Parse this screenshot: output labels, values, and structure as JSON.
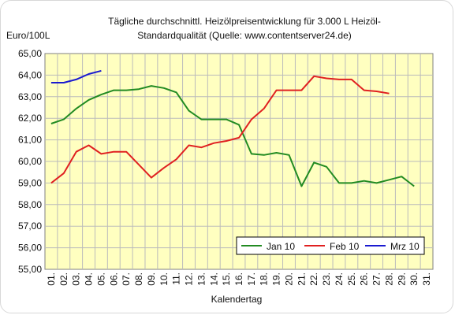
{
  "chart_data": {
    "type": "line",
    "title_line1": "Tägliche durchschnittl. Heizölpreisentwicklung für 3.000 L Heizöl-",
    "title_line2": "Standardqualität (Quelle: www.contentserver24.de)",
    "ylabel": "Euro/100L",
    "xlabel": "Kalendertag",
    "ylim": [
      55,
      65
    ],
    "yticks": [
      "55,00",
      "56,00",
      "57,00",
      "58,00",
      "59,00",
      "60,00",
      "61,00",
      "62,00",
      "63,00",
      "64,00",
      "65,00"
    ],
    "categories": [
      "01.",
      "02.",
      "03.",
      "04.",
      "05.",
      "06.",
      "07.",
      "08.",
      "09.",
      "10.",
      "11.",
      "12.",
      "13.",
      "14.",
      "15.",
      "16.",
      "17.",
      "18.",
      "19.",
      "20.",
      "21.",
      "22.",
      "23.",
      "24.",
      "25.",
      "26.",
      "27.",
      "28.",
      "29.",
      "30.",
      "31."
    ],
    "grid": true,
    "plot_background": "#ffffc0",
    "legend_position": "bottom-right",
    "series": [
      {
        "name": "Jan 10",
        "color": "#228b22",
        "values": [
          61.75,
          61.95,
          62.45,
          62.85,
          63.1,
          63.3,
          63.3,
          63.35,
          63.5,
          63.4,
          63.2,
          62.35,
          61.95,
          61.95,
          61.95,
          61.7,
          60.35,
          60.3,
          60.4,
          60.3,
          58.85,
          59.95,
          59.75,
          59.0,
          59.0,
          59.1,
          59.0,
          59.15,
          59.3,
          58.85,
          null
        ]
      },
      {
        "name": "Feb 10",
        "color": "#e02020",
        "values": [
          59.0,
          59.45,
          60.45,
          60.75,
          60.35,
          60.45,
          60.45,
          59.85,
          59.25,
          59.7,
          60.1,
          60.75,
          60.65,
          60.85,
          60.95,
          61.1,
          61.95,
          62.45,
          63.3,
          63.3,
          63.3,
          63.95,
          63.85,
          63.8,
          63.8,
          63.3,
          63.25,
          63.15,
          null,
          null,
          null
        ]
      },
      {
        "name": "Mrz 10",
        "color": "#1a1ad0",
        "values": [
          63.65,
          63.65,
          63.8,
          64.05,
          64.2,
          null,
          null,
          null,
          null,
          null,
          null,
          null,
          null,
          null,
          null,
          null,
          null,
          null,
          null,
          null,
          null,
          null,
          null,
          null,
          null,
          null,
          null,
          null,
          null,
          null,
          null
        ]
      }
    ]
  }
}
